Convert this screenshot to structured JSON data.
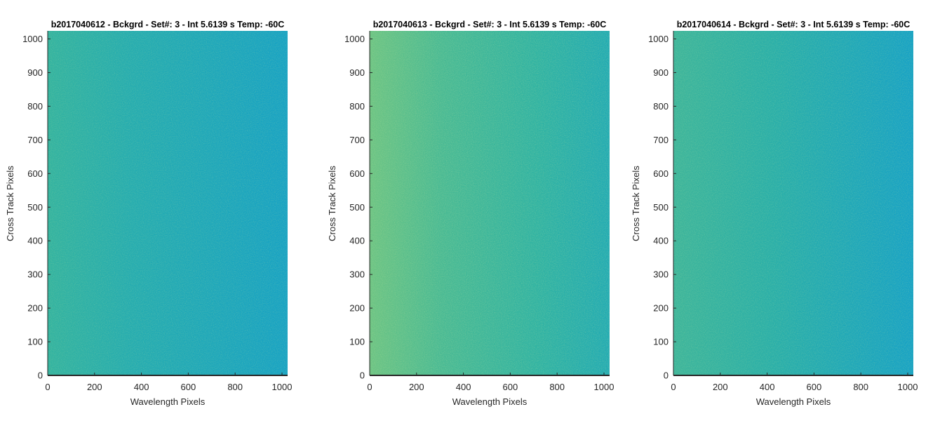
{
  "colors": {
    "background": "#ffffff",
    "axis": "#262626",
    "colormap_low": "#1a9ec4",
    "colormap_mid": "#2fb3a2",
    "colormap_high": "#80c96c"
  },
  "chart_data": [
    {
      "type": "heatmap",
      "title": "b2017040612 - Bckgrd - Set#: 3 - Int 5.6139 s Temp: -60C",
      "xlabel": "Wavelength Pixels",
      "ylabel": "Cross Track Pixels",
      "xlim": [
        0,
        1024
      ],
      "ylim": [
        0,
        1024
      ],
      "xticks": [
        0,
        200,
        400,
        600,
        800,
        1000
      ],
      "yticks": [
        0,
        100,
        200,
        300,
        400,
        500,
        600,
        700,
        800,
        900,
        1000
      ],
      "grid": false,
      "colormap": "parula",
      "intensity_trend": "nearly uniform teal, slightly greener toward low wavelength pixels"
    },
    {
      "type": "heatmap",
      "title": "b2017040613 - Bckgrd - Set#: 3 - Int 5.6139 s Temp: -60C",
      "xlabel": "Wavelength Pixels",
      "ylabel": "Cross Track Pixels",
      "xlim": [
        0,
        1024
      ],
      "ylim": [
        0,
        1024
      ],
      "xticks": [
        0,
        200,
        400,
        600,
        800,
        1000
      ],
      "yticks": [
        0,
        100,
        200,
        300,
        400,
        500,
        600,
        700,
        800,
        900,
        1000
      ],
      "grid": false,
      "colormap": "parula",
      "intensity_trend": "higher (greener) at low wavelength pixels, decreasing toward high wavelength pixels"
    },
    {
      "type": "heatmap",
      "title": "b2017040614 - Bckgrd - Set#: 3 - Int 5.6139 s Temp: -60C",
      "xlabel": "Wavelength Pixels",
      "ylabel": "Cross Track Pixels",
      "xlim": [
        0,
        1024
      ],
      "ylim": [
        0,
        1024
      ],
      "xticks": [
        0,
        200,
        400,
        600,
        800,
        1000
      ],
      "yticks": [
        0,
        100,
        200,
        300,
        400,
        500,
        600,
        700,
        800,
        900,
        1000
      ],
      "grid": false,
      "colormap": "parula",
      "intensity_trend": "slightly greener at low wavelength pixels, bluer toward high wavelength pixels"
    }
  ]
}
